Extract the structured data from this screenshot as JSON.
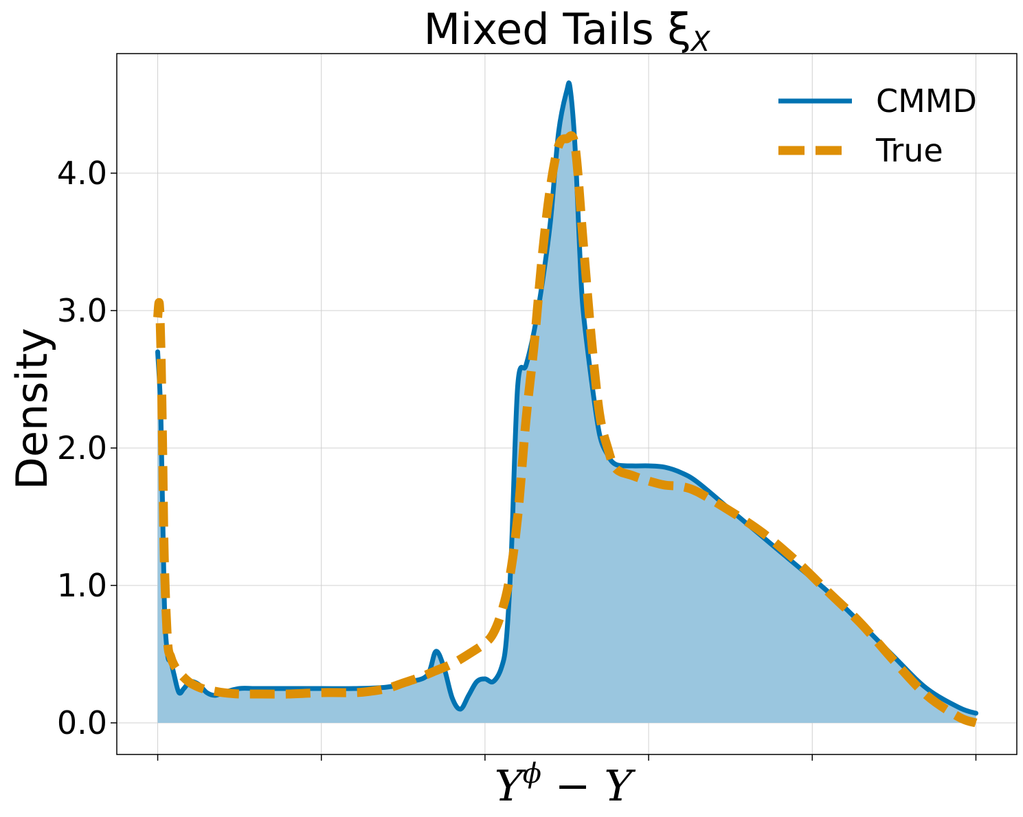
{
  "chart_data": {
    "type": "area",
    "title": "Mixed Tails ξ",
    "title_subscript": "X",
    "xlabel_main": "Y",
    "xlabel_sup": "ϕ",
    "xlabel_tail": " − Y",
    "ylabel": "Density",
    "xlim": [
      -0.25,
      5.25
    ],
    "ylim": [
      -0.23,
      4.87
    ],
    "x_ticks": [
      0,
      1,
      2,
      3,
      4,
      5
    ],
    "x_tick_labels": [
      "",
      "",
      "",
      "",
      "",
      ""
    ],
    "y_ticks": [
      0,
      1,
      2,
      3,
      4
    ],
    "y_tick_labels": [
      "0.0",
      "1.0",
      "2.0",
      "3.0",
      "4.0"
    ],
    "grid": true,
    "legend_position": "top-right",
    "series": [
      {
        "name": "CMMD",
        "color": "#0173b2",
        "style": "solid",
        "filled": true,
        "fill_color": "#9ac6df",
        "x": [
          0.0,
          0.02,
          0.04,
          0.06,
          0.08,
          0.1,
          0.13,
          0.16,
          0.2,
          0.25,
          0.3,
          0.35,
          0.4,
          0.5,
          0.6,
          0.8,
          1.0,
          1.2,
          1.4,
          1.55,
          1.65,
          1.7,
          1.75,
          1.8,
          1.85,
          1.9,
          1.95,
          2.0,
          2.05,
          2.1,
          2.13,
          2.16,
          2.2,
          2.25,
          2.3,
          2.35,
          2.4,
          2.45,
          2.5,
          2.52,
          2.55,
          2.58,
          2.6,
          2.65,
          2.7,
          2.75,
          2.8,
          2.9,
          3.0,
          3.1,
          3.2,
          3.3,
          3.5,
          3.7,
          3.9,
          4.1,
          4.3,
          4.5,
          4.7,
          4.9,
          5.0
        ],
        "y": [
          2.7,
          2.2,
          0.9,
          0.5,
          0.45,
          0.35,
          0.22,
          0.25,
          0.3,
          0.28,
          0.22,
          0.2,
          0.22,
          0.25,
          0.25,
          0.25,
          0.25,
          0.25,
          0.26,
          0.3,
          0.35,
          0.52,
          0.4,
          0.18,
          0.1,
          0.2,
          0.3,
          0.32,
          0.3,
          0.4,
          0.6,
          1.2,
          2.45,
          2.6,
          2.85,
          3.2,
          3.65,
          4.3,
          4.6,
          4.62,
          4.2,
          3.4,
          3.0,
          2.5,
          2.1,
          1.95,
          1.88,
          1.87,
          1.87,
          1.86,
          1.82,
          1.75,
          1.55,
          1.35,
          1.15,
          0.95,
          0.72,
          0.48,
          0.25,
          0.11,
          0.07
        ]
      },
      {
        "name": "True",
        "color": "#de8f05",
        "style": "dashed",
        "filled": false,
        "x": [
          0.0,
          0.01,
          0.02,
          0.03,
          0.04,
          0.06,
          0.08,
          0.1,
          0.13,
          0.16,
          0.2,
          0.25,
          0.3,
          0.35,
          0.4,
          0.5,
          0.6,
          0.8,
          1.0,
          1.2,
          1.3,
          1.4,
          1.5,
          1.6,
          1.7,
          1.8,
          1.9,
          2.0,
          2.05,
          2.1,
          2.15,
          2.2,
          2.25,
          2.3,
          2.35,
          2.4,
          2.45,
          2.5,
          2.55,
          2.6,
          2.65,
          2.7,
          2.75,
          2.8,
          2.9,
          3.0,
          3.1,
          3.2,
          3.3,
          3.5,
          3.7,
          3.9,
          4.1,
          4.3,
          4.5,
          4.7,
          4.9,
          5.0
        ],
        "y": [
          2.95,
          3.05,
          2.7,
          2.0,
          1.2,
          0.6,
          0.48,
          0.42,
          0.37,
          0.33,
          0.29,
          0.26,
          0.24,
          0.23,
          0.22,
          0.21,
          0.21,
          0.21,
          0.22,
          0.22,
          0.23,
          0.25,
          0.29,
          0.33,
          0.38,
          0.43,
          0.5,
          0.58,
          0.65,
          0.8,
          1.05,
          1.5,
          2.2,
          2.75,
          3.4,
          3.9,
          4.2,
          4.25,
          4.2,
          3.5,
          2.8,
          2.25,
          2.0,
          1.85,
          1.8,
          1.76,
          1.73,
          1.72,
          1.68,
          1.54,
          1.38,
          1.18,
          0.95,
          0.72,
          0.45,
          0.2,
          0.04,
          0.0
        ]
      }
    ]
  }
}
